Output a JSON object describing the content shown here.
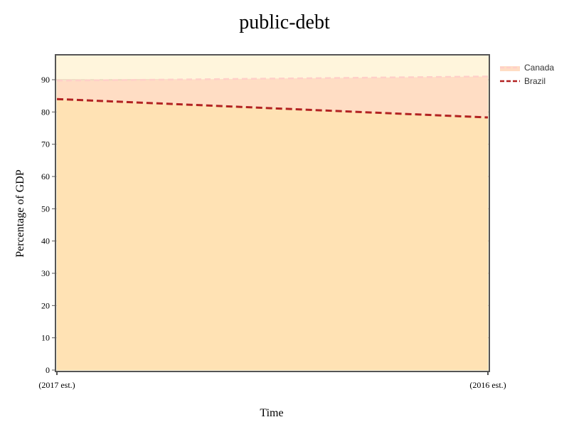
{
  "chart_data": {
    "type": "area",
    "title": "public-debt",
    "xlabel": "Time",
    "ylabel": "Percentage of GDP",
    "categories": [
      "(2017 est.)",
      "(2016 est.)"
    ],
    "ylim": [
      0,
      97
    ],
    "yticks": [
      0,
      10,
      20,
      30,
      40,
      50,
      60,
      70,
      80,
      90
    ],
    "grid": true,
    "legend_position": "top-right",
    "series": [
      {
        "name": "Canada",
        "values": [
          89.7,
          91.0
        ],
        "color": "#ffcfc8",
        "line_style": "dashed",
        "fill": "#ffddc4"
      },
      {
        "name": "Brazil",
        "values": [
          84.0,
          78.3
        ],
        "color": "#b22222",
        "line_style": "dashed",
        "fill": "#ffe2b4"
      }
    ],
    "colors": {
      "plot_background": "#fff5dc",
      "gridline": "#d2b49a",
      "axis": "#555555"
    }
  }
}
